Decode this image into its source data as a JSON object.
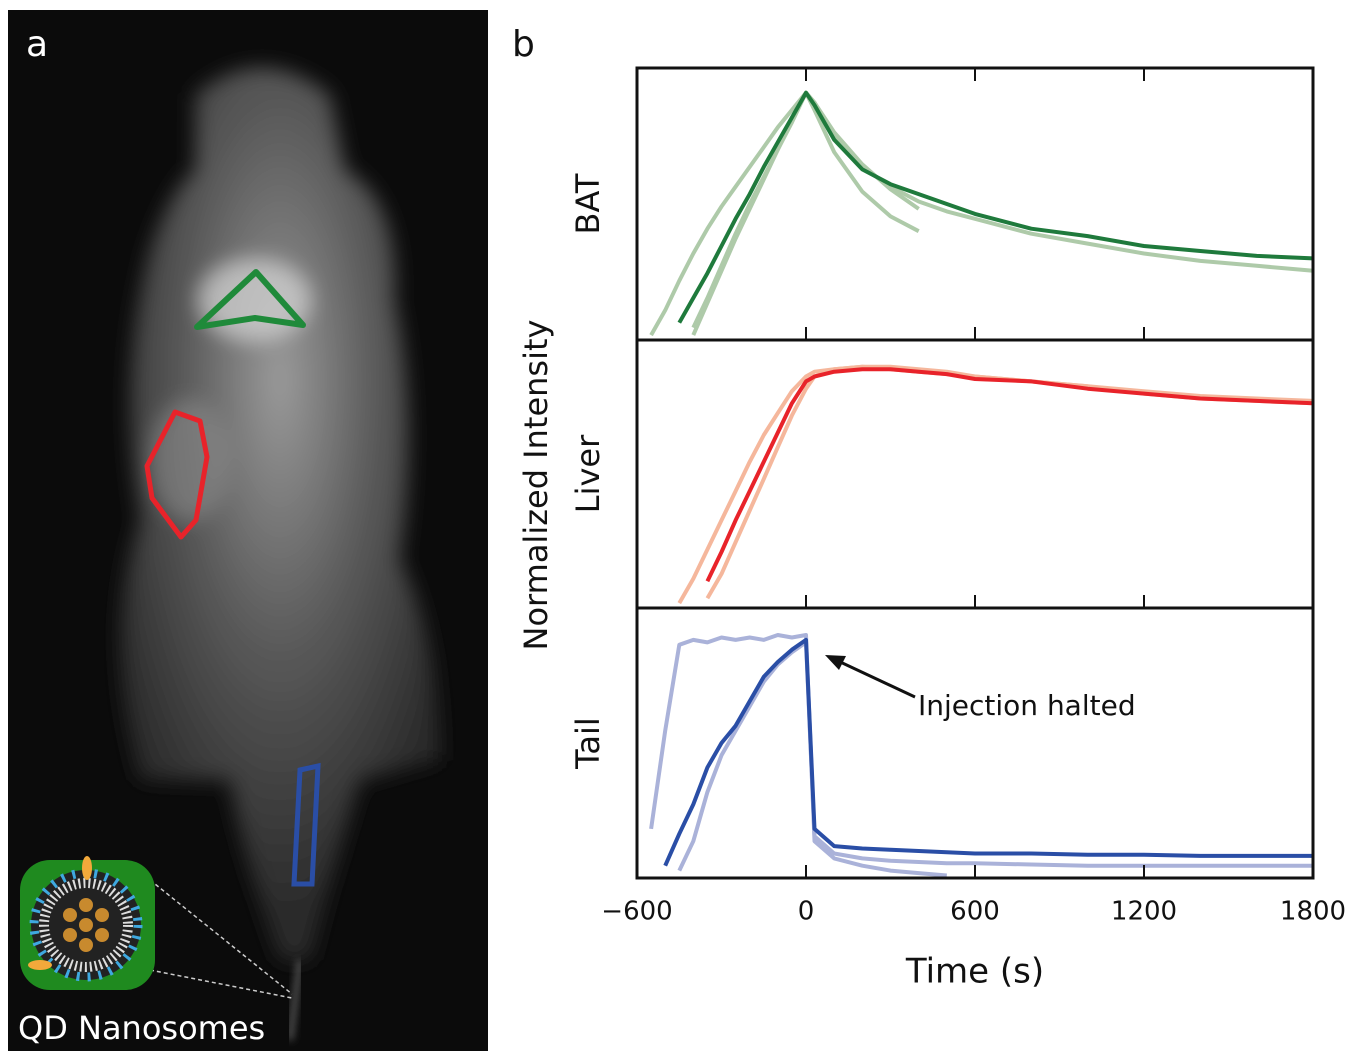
{
  "figure": {
    "panel_a_label": "a",
    "panel_b_label": "b",
    "caption": "QD Nanosomes",
    "ylabel": "Normalized Intensity"
  },
  "chart_data": [
    {
      "type": "line",
      "ylabel": "BAT",
      "x": [
        -600,
        -550,
        -500,
        -450,
        -400,
        -350,
        -300,
        -250,
        -200,
        -150,
        -100,
        -50,
        0,
        30,
        100,
        200,
        300,
        400,
        500,
        600,
        800,
        1000,
        1200,
        1400,
        1600,
        1800
      ],
      "xlim": [
        -600,
        1800
      ],
      "xticks": [
        -600,
        0,
        600,
        1200,
        1800
      ],
      "ylim": [
        0,
        1.1
      ],
      "series": [
        {
          "color": "#aecaa9",
          "values": [
            null,
            0.02,
            0.12,
            0.24,
            0.35,
            0.45,
            0.54,
            0.62,
            0.7,
            0.78,
            0.86,
            0.93,
            1.0,
            0.93,
            0.76,
            0.6,
            0.5,
            0.44,
            null,
            null,
            null,
            null,
            null,
            null,
            null,
            null
          ]
        },
        {
          "color": "#aecaa9",
          "values": [
            null,
            null,
            null,
            null,
            0.05,
            0.17,
            0.3,
            0.43,
            0.55,
            0.66,
            0.77,
            0.89,
            1.0,
            0.96,
            0.84,
            0.71,
            0.61,
            0.53,
            null,
            null,
            null,
            null,
            null,
            null,
            null,
            null
          ]
        },
        {
          "color": "#aecaa9",
          "values": [
            null,
            null,
            null,
            null,
            0.02,
            0.15,
            0.28,
            0.41,
            0.53,
            0.65,
            0.77,
            0.88,
            1.0,
            0.96,
            0.83,
            0.7,
            0.62,
            0.56,
            0.52,
            0.49,
            0.43,
            0.39,
            0.35,
            0.32,
            0.3,
            0.28
          ]
        },
        {
          "color": "#1f7a3c",
          "values": [
            null,
            null,
            null,
            0.07,
            0.17,
            0.27,
            0.38,
            0.49,
            0.59,
            0.7,
            0.8,
            0.9,
            1.0,
            0.95,
            0.81,
            0.69,
            0.63,
            0.59,
            0.55,
            0.51,
            0.45,
            0.42,
            0.38,
            0.36,
            0.34,
            0.33
          ]
        }
      ]
    },
    {
      "type": "line",
      "ylabel": "Liver",
      "x": [
        -600,
        -550,
        -500,
        -450,
        -400,
        -350,
        -300,
        -250,
        -200,
        -150,
        -100,
        -50,
        0,
        30,
        100,
        200,
        300,
        400,
        500,
        600,
        800,
        1000,
        1200,
        1400,
        1600,
        1800
      ],
      "xlim": [
        -600,
        1800
      ],
      "xticks": [
        -600,
        0,
        600,
        1200,
        1800
      ],
      "ylim": [
        0,
        1.1
      ],
      "series": [
        {
          "color": "#f5b79c",
          "values": [
            null,
            null,
            null,
            0.02,
            0.12,
            0.24,
            0.36,
            0.48,
            0.6,
            0.71,
            0.8,
            0.89,
            0.95,
            0.97,
            0.98,
            0.99,
            0.99,
            0.98,
            0.97,
            0.95,
            0.93,
            0.91,
            0.89,
            0.87,
            0.86,
            0.85
          ]
        },
        {
          "color": "#f5b79c",
          "values": [
            null,
            null,
            null,
            null,
            null,
            0.04,
            0.14,
            0.27,
            0.4,
            0.53,
            0.66,
            0.79,
            0.9,
            0.95,
            0.98,
            0.99,
            0.98,
            0.97,
            0.96,
            0.95,
            0.93,
            0.91,
            0.88,
            0.86,
            0.85,
            0.84
          ]
        },
        {
          "color": "#e8232a",
          "values": [
            null,
            null,
            null,
            null,
            null,
            0.11,
            0.23,
            0.36,
            0.48,
            0.6,
            0.72,
            0.84,
            0.93,
            0.95,
            0.97,
            0.98,
            0.98,
            0.97,
            0.96,
            0.94,
            0.93,
            0.9,
            0.88,
            0.86,
            0.85,
            0.84
          ]
        }
      ]
    },
    {
      "type": "line",
      "ylabel": "Tail",
      "xlabel": "Time (s)",
      "annotation": "Injection halted",
      "x": [
        -600,
        -550,
        -500,
        -450,
        -400,
        -350,
        -300,
        -250,
        -200,
        -150,
        -100,
        -50,
        0,
        30,
        100,
        200,
        300,
        400,
        500,
        600,
        800,
        1000,
        1200,
        1400,
        1600,
        1800
      ],
      "xlim": [
        -600,
        1800
      ],
      "xticks": [
        {
          "value": -600,
          "label": "−600"
        },
        0,
        600,
        1200,
        1800
      ],
      "ylim": [
        0,
        1.1
      ],
      "series": [
        {
          "color": "#aab2d9",
          "values": [
            null,
            0.2,
            0.6,
            0.95,
            0.97,
            0.96,
            0.98,
            0.97,
            0.98,
            0.97,
            0.99,
            0.98,
            0.99,
            0.15,
            0.08,
            0.05,
            0.03,
            0.02,
            0.01,
            null,
            null,
            null,
            null,
            null,
            null,
            null
          ]
        },
        {
          "color": "#aab2d9",
          "values": [
            null,
            null,
            null,
            0.03,
            0.15,
            0.35,
            0.5,
            0.6,
            0.7,
            0.8,
            0.87,
            0.92,
            0.96,
            0.17,
            0.1,
            0.08,
            0.07,
            0.065,
            0.06,
            0.06,
            0.055,
            0.05,
            0.05,
            0.05,
            0.05,
            0.05
          ]
        },
        {
          "color": "#2a4ea6",
          "values": [
            null,
            null,
            0.05,
            0.18,
            0.3,
            0.45,
            0.55,
            0.62,
            0.72,
            0.82,
            0.88,
            0.93,
            0.97,
            0.2,
            0.13,
            0.12,
            0.115,
            0.11,
            0.105,
            0.1,
            0.1,
            0.095,
            0.095,
            0.09,
            0.09,
            0.09
          ]
        }
      ]
    }
  ]
}
